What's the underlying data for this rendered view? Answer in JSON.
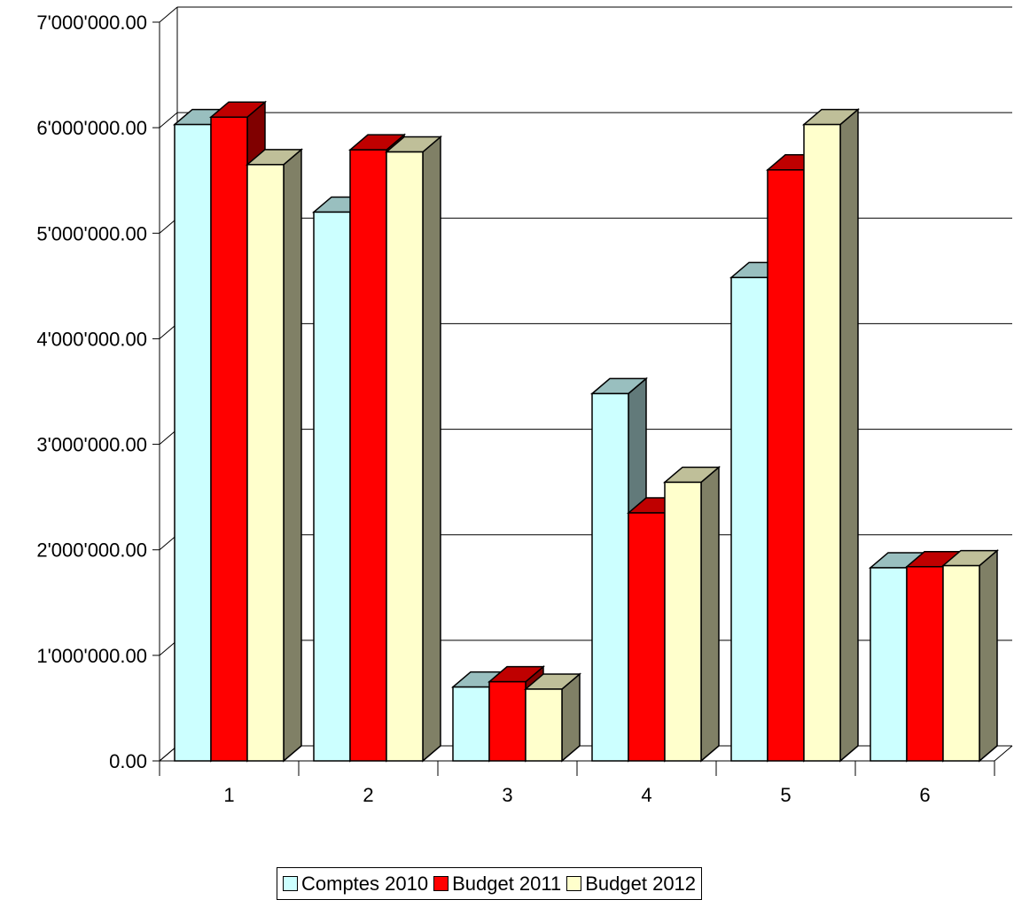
{
  "chart_data": {
    "type": "bar",
    "categories": [
      "1",
      "2",
      "3",
      "4",
      "5",
      "6"
    ],
    "series": [
      {
        "name": "Comptes 2010",
        "color": "#ccffff",
        "values": [
          6030000,
          5200000,
          700000,
          3480000,
          4580000,
          1830000
        ]
      },
      {
        "name": "Budget 2011",
        "color": "#ff0000",
        "values": [
          6100000,
          5790000,
          750000,
          2350000,
          5600000,
          1840000
        ]
      },
      {
        "name": "Budget 2012",
        "color": "#ffffcc",
        "values": [
          5650000,
          5770000,
          680000,
          2640000,
          6030000,
          1850000
        ]
      }
    ],
    "ylim": [
      0,
      7000000
    ],
    "yticks": [
      "0.00",
      "1'000'000.00",
      "2'000'000.00",
      "3'000'000.00",
      "4'000'000.00",
      "5'000'000.00",
      "6'000'000.00",
      "7'000'000.00"
    ],
    "grid": true,
    "three_d": true,
    "legend_position": "bottom",
    "title": "",
    "xlabel": "",
    "ylabel": ""
  }
}
